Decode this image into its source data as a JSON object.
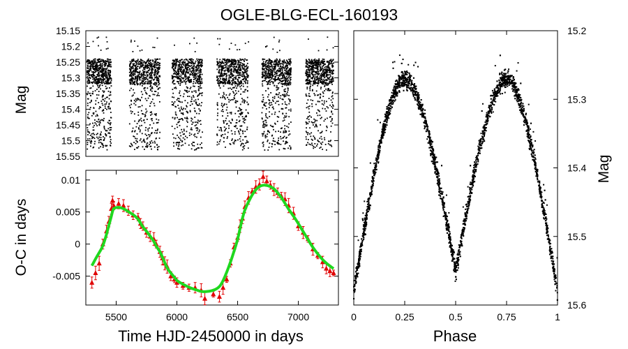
{
  "title": "OGLE-BLG-ECL-160193",
  "charts": [
    {
      "id": "lightcurve_time",
      "type": "scatter",
      "ylabel": "Mag",
      "xlim": [
        5250,
        7330
      ],
      "ylim": [
        15.55,
        15.15
      ],
      "yticks": [
        "15.15",
        "15.2",
        "15.25",
        "15.3",
        "15.35",
        "15.4",
        "15.45",
        "15.5",
        "15.55"
      ],
      "seasons": [
        [
          5260,
          5460
        ],
        [
          5610,
          5860
        ],
        [
          5960,
          6210
        ],
        [
          6330,
          6590
        ],
        [
          6700,
          6940
        ],
        [
          7060,
          7290
        ]
      ],
      "mag_range_dense": [
        15.24,
        15.53
      ],
      "color": "#000000"
    },
    {
      "id": "oc_diagram",
      "type": "line",
      "ylabel": "O-C in days",
      "xlabel": "Time HJD-2450000 in days",
      "xlim": [
        5250,
        7330
      ],
      "ylim": [
        -0.0095,
        0.0115
      ],
      "xticks": [
        "5500",
        "6000",
        "6500",
        "7000"
      ],
      "yticks": [
        "0.01",
        "0.005",
        "0",
        "-0.005"
      ],
      "model_color": "#1fd81f",
      "points_color": "#e00000",
      "points": [
        [
          5300,
          -0.006
        ],
        [
          5330,
          -0.0045
        ],
        [
          5360,
          -0.003
        ],
        [
          5390,
          0.0
        ],
        [
          5420,
          0.002
        ],
        [
          5440,
          0.0035
        ],
        [
          5460,
          0.0055
        ],
        [
          5470,
          0.0068
        ],
        [
          5480,
          0.006
        ],
        [
          5520,
          0.0063
        ],
        [
          5560,
          0.006
        ],
        [
          5600,
          0.0052
        ],
        [
          5640,
          0.0045
        ],
        [
          5680,
          0.0042
        ],
        [
          5700,
          0.0032
        ],
        [
          5720,
          0.0028
        ],
        [
          5750,
          0.0018
        ],
        [
          5780,
          0.0012
        ],
        [
          5810,
          0.0008
        ],
        [
          5830,
          0.0
        ],
        [
          5860,
          -0.0012
        ],
        [
          5880,
          -0.0022
        ],
        [
          5900,
          -0.003
        ],
        [
          5920,
          -0.0035
        ],
        [
          5950,
          -0.005
        ],
        [
          5980,
          -0.0055
        ],
        [
          6000,
          -0.006
        ],
        [
          6050,
          -0.0065
        ],
        [
          6100,
          -0.0068
        ],
        [
          6150,
          -0.0068
        ],
        [
          6200,
          -0.0072
        ],
        [
          6230,
          -0.0085
        ],
        [
          6300,
          -0.0078
        ],
        [
          6350,
          -0.0082
        ],
        [
          6380,
          -0.0068
        ],
        [
          6410,
          -0.0055
        ],
        [
          6440,
          -0.003
        ],
        [
          6470,
          -0.0005
        ],
        [
          6500,
          0.001
        ],
        [
          6520,
          0.0028
        ],
        [
          6540,
          0.004
        ],
        [
          6560,
          0.0058
        ],
        [
          6590,
          0.0072
        ],
        [
          6620,
          0.0082
        ],
        [
          6650,
          0.0089
        ],
        [
          6680,
          0.0093
        ],
        [
          6710,
          0.0105
        ],
        [
          6740,
          0.0098
        ],
        [
          6770,
          0.0092
        ],
        [
          6800,
          0.0085
        ],
        [
          6830,
          0.008
        ],
        [
          6860,
          0.0075
        ],
        [
          6890,
          0.007
        ],
        [
          6920,
          0.006
        ],
        [
          6960,
          0.0048
        ],
        [
          7000,
          0.0028
        ],
        [
          7040,
          0.0018
        ],
        [
          7080,
          0.0008
        ],
        [
          7120,
          -0.0008
        ],
        [
          7160,
          -0.0018
        ],
        [
          7200,
          -0.0028
        ],
        [
          7230,
          -0.0038
        ],
        [
          7260,
          -0.0042
        ],
        [
          7290,
          -0.0045
        ]
      ],
      "errorbars_approx": 0.0008
    },
    {
      "id": "phased_lightcurve",
      "type": "scatter",
      "xlabel": "Phase",
      "ylabel": "Mag",
      "xlim": [
        0,
        1
      ],
      "ylim": [
        15.6,
        15.2
      ],
      "xticks": [
        "0",
        "0.25",
        "0.5",
        "0.75",
        "1"
      ],
      "yticks": [
        "15.2",
        "15.3",
        "15.4",
        "15.5",
        "15.6"
      ],
      "max_mag": 15.27,
      "primary_min_mag": 15.55,
      "secondary_min_mag": 15.58,
      "color": "#000000"
    }
  ]
}
